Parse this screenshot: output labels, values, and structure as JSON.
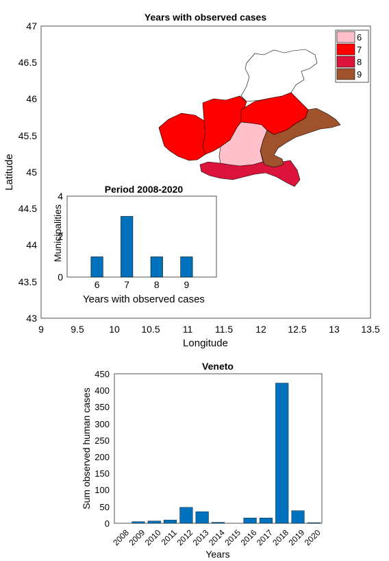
{
  "chart_data": [
    {
      "type": "map",
      "title": "Years with observed cases",
      "xlabel": "Longitude",
      "ylabel": "Latitude",
      "xlim": [
        9,
        13.5
      ],
      "ylim": [
        43,
        47
      ],
      "x_ticks": [
        "9",
        "9.5",
        "10",
        "10.5",
        "11",
        "11.5",
        "12",
        "12.5",
        "13",
        "13.5"
      ],
      "y_ticks": [
        "43",
        "43.5",
        "44",
        "44.5",
        "45",
        "45.5",
        "46",
        "46.5",
        "47"
      ],
      "legend": {
        "placement": "top-right",
        "entries": [
          {
            "label": "6",
            "color": "#FFC0CB"
          },
          {
            "label": "7",
            "color": "#FF0000"
          },
          {
            "label": "8",
            "color": "#DC143C"
          },
          {
            "label": "9",
            "color": "#A0522D"
          }
        ]
      }
    },
    {
      "type": "bar",
      "title": "Period 2008-2020",
      "xlabel": "Years with observed cases",
      "ylabel": "Municipalities",
      "categories": [
        "6",
        "7",
        "8",
        "9"
      ],
      "values": [
        1,
        3,
        1,
        1
      ],
      "ylim": [
        0,
        4
      ],
      "y_ticks": [
        "0",
        "2",
        "4"
      ],
      "color": "#0072BD"
    },
    {
      "type": "bar",
      "title": "Veneto",
      "xlabel": "Years",
      "ylabel": "Sum observed human cases",
      "categories": [
        "2008",
        "2009",
        "2010",
        "2011",
        "2012",
        "2013",
        "2014",
        "2015",
        "2016",
        "2017",
        "2018",
        "2019",
        "2020"
      ],
      "values": [
        0,
        5,
        7,
        10,
        48,
        35,
        3,
        0,
        16,
        16,
        422,
        38,
        2
      ],
      "ylim": [
        0,
        450
      ],
      "y_ticks": [
        "0",
        "50",
        "100",
        "150",
        "200",
        "250",
        "300",
        "350",
        "400",
        "450"
      ],
      "color": "#0072BD"
    }
  ]
}
